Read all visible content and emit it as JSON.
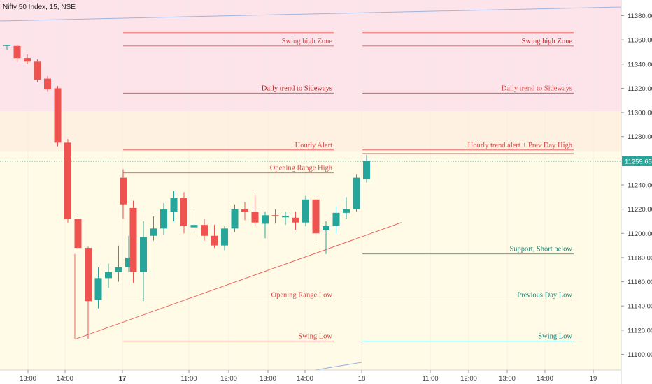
{
  "header": {
    "title": "Nifty 50 Index, 15, NSE"
  },
  "chart_data": {
    "type": "candlestick",
    "title": "Nifty 50 Index, 15, NSE",
    "ylim": [
      11087,
      11393
    ],
    "y_ticks": [
      11100,
      11120,
      11140,
      11160,
      11180,
      11200,
      11220,
      11240,
      11260,
      11280,
      11300,
      11320,
      11340,
      11360,
      11380
    ],
    "last_price": "11259.65",
    "x_ticks": [
      "13:00",
      "14:00",
      "17",
      "11:00",
      "12:00",
      "13:00",
      "14:00",
      "18",
      "11:00",
      "12:00",
      "13:00",
      "14:00",
      "19"
    ],
    "colors": {
      "up": "#26a69a",
      "down": "#ef5350",
      "zone_high": "#fce4ec",
      "zone_mid": "#fff3e0",
      "zone_low": "#fffde7"
    },
    "zones": [
      {
        "name": "swing-high-zone",
        "from": 11301,
        "to": 11393,
        "color": "#fde4ea"
      },
      {
        "name": "hourly-alert-zone",
        "from": 11268,
        "to": 11301,
        "color": "#fff1e1"
      },
      {
        "name": "lower-zone",
        "from": 11087,
        "to": 11268,
        "color": "#fffbe6"
      }
    ],
    "candles": [
      {
        "session": 1,
        "o": 11355,
        "h": 11356,
        "l": 11352,
        "c": 11356
      },
      {
        "session": 1,
        "o": 11355,
        "h": 11356,
        "l": 11342,
        "c": 11345
      },
      {
        "session": 1,
        "o": 11345,
        "h": 11348,
        "l": 11340,
        "c": 11342
      },
      {
        "session": 1,
        "o": 11342,
        "h": 11344,
        "l": 11325,
        "c": 11327
      },
      {
        "session": 1,
        "o": 11328,
        "h": 11330,
        "l": 11317,
        "c": 11319
      },
      {
        "session": 1,
        "o": 11320,
        "h": 11322,
        "l": 11272,
        "c": 11275
      },
      {
        "session": 1,
        "o": 11275,
        "h": 11278,
        "l": 11209,
        "c": 11212
      },
      {
        "session": 1,
        "o": 11212,
        "h": 11214,
        "l": 11186,
        "c": 11188
      },
      {
        "session": 1,
        "o": 11188,
        "h": 11189,
        "l": 11113,
        "c": 11144
      },
      {
        "session": 1,
        "o": 11145,
        "h": 11172,
        "l": 11138,
        "c": 11163
      },
      {
        "session": 1,
        "o": 11163,
        "h": 11175,
        "l": 11155,
        "c": 11168
      },
      {
        "session": 1,
        "o": 11168,
        "h": 11190,
        "l": 11160,
        "c": 11172
      },
      {
        "session": 1,
        "o": 11172,
        "h": 11198,
        "l": 11168,
        "c": 11180
      },
      {
        "session": 2,
        "o": 11246,
        "h": 11253,
        "l": 11212,
        "c": 11224
      },
      {
        "session": 2,
        "o": 11221,
        "h": 11227,
        "l": 11159,
        "c": 11168
      },
      {
        "session": 2,
        "o": 11168,
        "h": 11210,
        "l": 11144,
        "c": 11197
      },
      {
        "session": 2,
        "o": 11198,
        "h": 11214,
        "l": 11194,
        "c": 11204
      },
      {
        "session": 2,
        "o": 11204,
        "h": 11225,
        "l": 11199,
        "c": 11220
      },
      {
        "session": 2,
        "o": 11218,
        "h": 11235,
        "l": 11210,
        "c": 11229
      },
      {
        "session": 2,
        "o": 11229,
        "h": 11234,
        "l": 11200,
        "c": 11206
      },
      {
        "session": 2,
        "o": 11205,
        "h": 11218,
        "l": 11201,
        "c": 11207
      },
      {
        "session": 2,
        "o": 11207,
        "h": 11212,
        "l": 11194,
        "c": 11198
      },
      {
        "session": 2,
        "o": 11198,
        "h": 11207,
        "l": 11188,
        "c": 11190
      },
      {
        "session": 2,
        "o": 11190,
        "h": 11206,
        "l": 11186,
        "c": 11204
      },
      {
        "session": 2,
        "o": 11204,
        "h": 11224,
        "l": 11201,
        "c": 11220
      },
      {
        "session": 2,
        "o": 11220,
        "h": 11226,
        "l": 11211,
        "c": 11218
      },
      {
        "session": 2,
        "o": 11218,
        "h": 11232,
        "l": 11206,
        "c": 11209
      },
      {
        "session": 2,
        "o": 11208,
        "h": 11218,
        "l": 11196,
        "c": 11215
      },
      {
        "session": 2,
        "o": 11215,
        "h": 11220,
        "l": 11208,
        "c": 11214
      },
      {
        "session": 2,
        "o": 11214,
        "h": 11218,
        "l": 11207,
        "c": 11214
      },
      {
        "session": 2,
        "o": 11213,
        "h": 11218,
        "l": 11203,
        "c": 11209
      },
      {
        "session": 2,
        "o": 11209,
        "h": 11231,
        "l": 11206,
        "c": 11228
      },
      {
        "session": 2,
        "o": 11228,
        "h": 11231,
        "l": 11192,
        "c": 11200
      },
      {
        "session": 2,
        "o": 11203,
        "h": 11210,
        "l": 11183,
        "c": 11206
      },
      {
        "session": 2,
        "o": 11206,
        "h": 11222,
        "l": 11200,
        "c": 11217
      },
      {
        "session": 2,
        "o": 11217,
        "h": 11230,
        "l": 11212,
        "c": 11220
      },
      {
        "session": 2,
        "o": 11220,
        "h": 11249,
        "l": 11218,
        "c": 11246
      },
      {
        "session": 2,
        "o": 11245,
        "h": 11265,
        "l": 11242,
        "c": 11260
      }
    ],
    "levels": [
      {
        "label": "Swing high Zone",
        "price": 11355,
        "segment": 1,
        "color": "#ef5350",
        "label_color": "#d84545",
        "top_line": 11366
      },
      {
        "label": "Swing high Zone",
        "price": 11355,
        "segment": 2,
        "color": "#ef5350",
        "label_color": "#c62828",
        "top_line": 11366
      },
      {
        "label": "Daily trend to Sideways",
        "price": 11316,
        "segment": 1,
        "color": "#ef5350",
        "label_color": "#b71c1c"
      },
      {
        "label": "Daily trend to Sideways",
        "price": 11316,
        "segment": 2,
        "color": "#ef5350",
        "label_color": "#d84545"
      },
      {
        "label": "Hourly Alert",
        "price": 11269,
        "segment": 1,
        "color": "#ef5350",
        "label_color": "#d84545"
      },
      {
        "label": "Hourly trend alert + Prev Day High",
        "price": 11269,
        "segment": 2,
        "color": "#ef5350",
        "label_color": "#d84545",
        "second_line": 11266
      },
      {
        "label": "Opening Range High",
        "price": 11250,
        "segment": 1,
        "color": "#ef5350",
        "label_color": "#d84545",
        "left_drop": 11238
      },
      {
        "label": "Support, Short below",
        "price": 11183,
        "segment": 2,
        "color": "#26a69a",
        "label_color": "#1b8a7d"
      },
      {
        "label": "Opening Range Low",
        "price": 11145,
        "segment": 1,
        "color": "#ef5350",
        "label_color": "#d84545"
      },
      {
        "label": "Previous Day Low",
        "price": 11145,
        "segment": 2,
        "color": "#26a69a",
        "label_color": "#1b8a7d"
      },
      {
        "label": "Swing Low",
        "price": 11111,
        "segment": 1,
        "color": "#ef5350",
        "label_color": "#d84545"
      },
      {
        "label": "Swing Low",
        "price": 11111,
        "segment": 2,
        "color": "#26a69a",
        "label_color": "#1b8a7d"
      }
    ],
    "grid": false,
    "legend": "none"
  }
}
